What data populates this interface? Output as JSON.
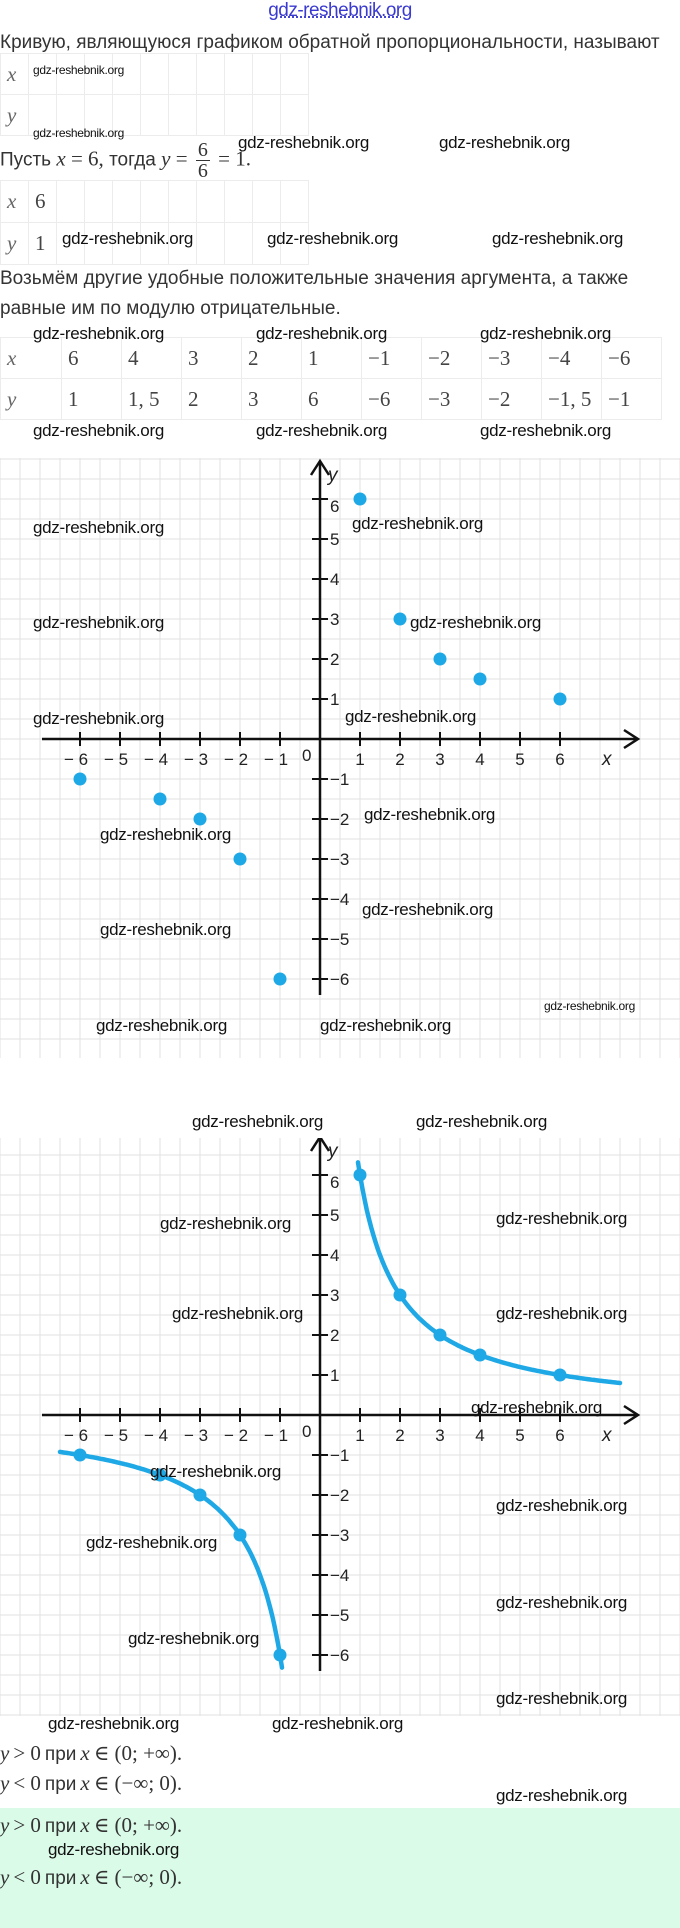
{
  "header_watermark": "gdz-reshebnik.org",
  "watermark": "gdz-reshebnik.org",
  "intro_text": "Кривую, являющуюся графиком обратной пропорциональности, называют",
  "table1": {
    "x_label": "x",
    "y_label": "y",
    "x_values": [
      "",
      "",
      "",
      "",
      "",
      "",
      "",
      "",
      "",
      ""
    ],
    "y_values": [
      "",
      "",
      "",
      "",
      "",
      "",
      "",
      "",
      "",
      ""
    ]
  },
  "example": {
    "prefix": "Пусть",
    "var_x": "x",
    "eq1": "= 6,",
    "then": "тогда",
    "var_y": "y",
    "eq2": "=",
    "num": "6",
    "den": "6",
    "result": "= 1."
  },
  "table2": {
    "x_label": "x",
    "y_label": "y",
    "x_values": [
      "6",
      "",
      "",
      "",
      "",
      "",
      "",
      "",
      "",
      ""
    ],
    "y_values": [
      "1",
      "",
      "",
      "",
      "",
      "",
      "",
      "",
      "",
      ""
    ]
  },
  "para_line1": "Возьмём другие удобные положительные значения аргумента, а также",
  "para_line2": "равные им по модулю отрицательные.",
  "table3": {
    "x_label": "x",
    "y_label": "y",
    "x_values": [
      "6",
      "4",
      "3",
      "2",
      "1",
      "−1",
      "−2",
      "−3",
      "−4",
      "−6"
    ],
    "y_values": [
      "1",
      "1, 5",
      "2",
      "3",
      "6",
      "−6",
      "−3",
      "−2",
      "−1, 5",
      "−1"
    ]
  },
  "chart_data": [
    {
      "type": "scatter",
      "title": "",
      "xlabel": "x",
      "ylabel": "y",
      "xlim": [
        -7,
        8
      ],
      "ylim": [
        -7,
        6.8
      ],
      "grid": true,
      "x_ticks": [
        -6,
        -5,
        -4,
        -3,
        -2,
        -1,
        1,
        2,
        3,
        4,
        5,
        6
      ],
      "y_ticks": [
        -6,
        -5,
        -4,
        -3,
        -2,
        -1,
        1,
        2,
        3,
        4,
        5,
        6
      ],
      "origin_label": "0",
      "x": [
        6,
        4,
        3,
        2,
        1,
        -1,
        -2,
        -3,
        -4,
        -6
      ],
      "y": [
        1,
        1.5,
        2,
        3,
        6,
        -6,
        -3,
        -2,
        -1.5,
        -1
      ],
      "color": "#1ea8e6"
    },
    {
      "type": "line",
      "title": "",
      "xlabel": "x",
      "ylabel": "y",
      "function": "y = 6/x",
      "xlim": [
        -7,
        8
      ],
      "ylim": [
        -7,
        6.8
      ],
      "grid": true,
      "x_ticks": [
        -6,
        -5,
        -4,
        -3,
        -2,
        -1,
        1,
        2,
        3,
        4,
        5,
        6
      ],
      "y_ticks": [
        -6,
        -5,
        -4,
        -3,
        -2,
        -1,
        1,
        2,
        3,
        4,
        5,
        6
      ],
      "origin_label": "0",
      "x": [
        6,
        4,
        3,
        2,
        1,
        -1,
        -2,
        -3,
        -4,
        -6
      ],
      "y": [
        1,
        1.5,
        2,
        3,
        6,
        -6,
        -3,
        -2,
        -1.5,
        -1
      ],
      "curve_range_right": [
        0.95,
        7.5
      ],
      "curve_range_left": [
        -6.5,
        -0.95
      ],
      "color": "#1ea8e6"
    }
  ],
  "conclusions": {
    "plain": [
      {
        "var": "y",
        "rel": "> 0",
        "word": "при",
        "var2": "x",
        "set": "∈ (0; +∞)."
      },
      {
        "var": "y",
        "rel": "< 0",
        "word": "при",
        "var2": "x",
        "set": "∈ (−∞; 0)."
      }
    ],
    "highlighted": [
      {
        "var": "y",
        "rel": "> 0",
        "word": "при",
        "var2": "x",
        "set": "∈ (0; +∞)."
      },
      {
        "var": "y",
        "rel": "< 0",
        "word": "при",
        "var2": "x",
        "set": "∈ (−∞; 0)."
      }
    ],
    "highlight_color": "#dbfbe9"
  }
}
